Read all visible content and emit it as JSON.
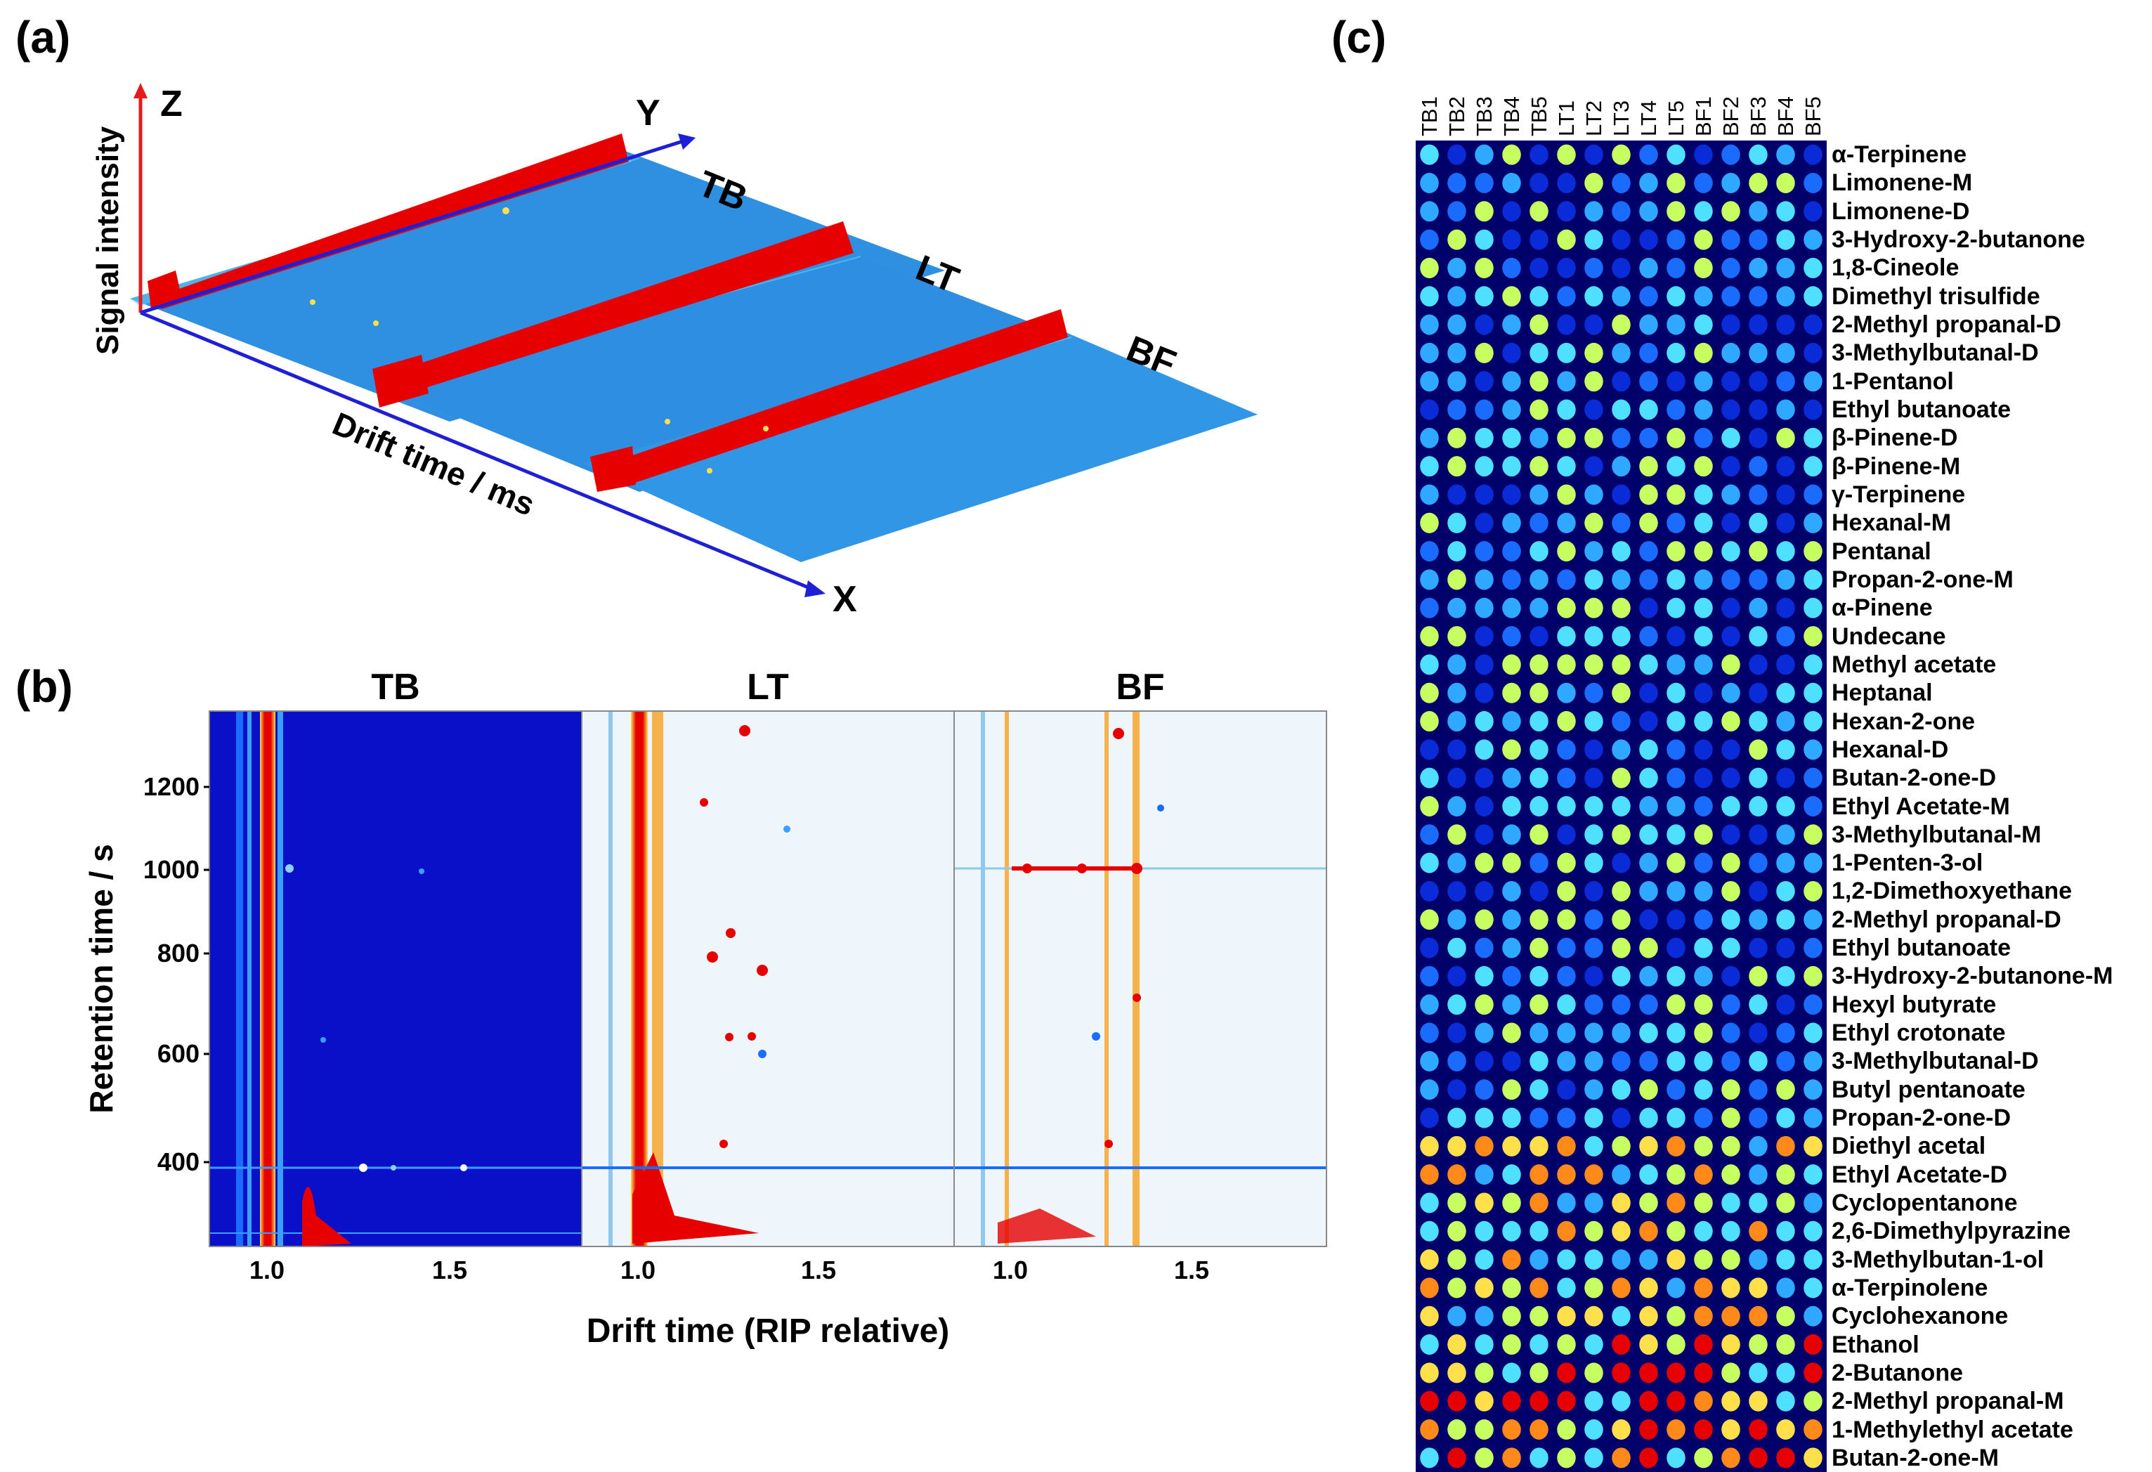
{
  "panels": {
    "a": {
      "label": "(a)",
      "axis_z": "Z",
      "axis_y": "Y",
      "axis_x": "X",
      "z_title": "Signal intensity",
      "x_title": "Drift time / ms",
      "groups": [
        "TB",
        "LT",
        "BF"
      ]
    },
    "b": {
      "label": "(b)",
      "ylabel": "Retention time / s",
      "xlabel": "Drift time (RIP relative)",
      "titles": [
        "TB",
        "LT",
        "BF"
      ],
      "yticks": [
        "1200",
        "1000",
        "800",
        "600",
        "400"
      ],
      "xticks": [
        "1.0",
        "1.5"
      ]
    },
    "c": {
      "label": "(c)",
      "samples": [
        "TB1",
        "TB2",
        "TB3",
        "TB4",
        "TB5",
        "LT1",
        "LT2",
        "LT3",
        "LT4",
        "LT5",
        "BF1",
        "BF2",
        "BF3",
        "BF4",
        "BF5"
      ],
      "compounds": [
        "α-Terpinene",
        "Limonene-M",
        "Limonene-D",
        "3-Hydroxy-2-butanone",
        "1,8-Cineole",
        "Dimethyl trisulfide",
        "2-Methyl propanal-D",
        "3-Methylbutanal-D",
        "1-Pentanol",
        "Ethyl butanoate",
        "β-Pinene-D",
        "β-Pinene-M",
        "γ-Terpinene",
        "Hexanal-M",
        "Pentanal",
        "Propan-2-one-M",
        "α-Pinene",
        "Undecane",
        "Methyl acetate",
        "Heptanal",
        "Hexan-2-one",
        "Hexanal-D",
        "Butan-2-one-D",
        "Ethyl Acetate-M",
        "3-Methylbutanal-M",
        "1-Penten-3-ol",
        "1,2-Dimethoxyethane",
        "2-Methyl propanal-D",
        "Ethyl butanoate",
        "3-Hydroxy-2-butanone-M",
        "Hexyl butyrate",
        "Ethyl crotonate",
        "3-Methylbutanal-D",
        "Butyl pentanoate",
        "Propan-2-one-D",
        "Diethyl acetal",
        "Ethyl Acetate-D",
        "Cyclopentanone",
        "2,6-Dimethylpyrazine",
        "3-Methylbutan-1-ol",
        "α-Terpinolene",
        "Cyclohexanone",
        "Ethanol",
        "2-Butanone",
        "2-Methyl propanal-M",
        "1-Methylethyl acetate",
        "Butan-2-one-M"
      ]
    }
  },
  "colors": {
    "axis_red": "#e41a1c",
    "axis_blue": "#1f1fd6",
    "topo_base": "#2f8fe0",
    "peak_red": "#e60000",
    "spectrum_dark": "#0a10c8",
    "spectrum_light": "#eef6fb",
    "heatmap_bg": "#00006a"
  }
}
